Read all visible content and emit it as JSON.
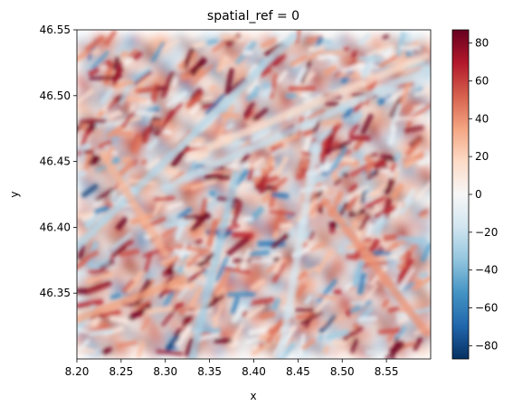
{
  "chart_data": {
    "type": "heatmap",
    "title": "spatial_ref = 0",
    "xlabel": "x",
    "ylabel": "y",
    "xlim": [
      8.2,
      8.6
    ],
    "ylim": [
      46.3,
      46.55
    ],
    "x_ticks": [
      "8.20",
      "8.25",
      "8.30",
      "8.35",
      "8.40",
      "8.45",
      "8.50",
      "8.55"
    ],
    "x_tick_values": [
      8.2,
      8.25,
      8.3,
      8.35,
      8.4,
      8.45,
      8.5,
      8.55
    ],
    "y_ticks": [
      "46.35",
      "46.40",
      "46.45",
      "46.50",
      "46.55"
    ],
    "y_tick_values": [
      46.35,
      46.4,
      46.45,
      46.5,
      46.55
    ],
    "data_extent": {
      "x": [
        8.2,
        8.595
      ],
      "y": [
        46.305,
        46.545
      ]
    },
    "colorbar": {
      "colormap": "RdBu_r",
      "range": [
        -87,
        87
      ],
      "ticks": [
        "−80",
        "−60",
        "−40",
        "−20",
        "0",
        "20",
        "40",
        "60",
        "80"
      ],
      "tick_values": [
        -80,
        -60,
        -40,
        -20,
        0,
        20,
        40,
        60,
        80
      ]
    },
    "colormap_stops": [
      "#053061",
      "#2166ac",
      "#4393c3",
      "#92c5de",
      "#d1e5f0",
      "#f7f7f7",
      "#fddbc7",
      "#f4a582",
      "#d6604d",
      "#b2182b",
      "#67001f"
    ],
    "features": [
      {
        "x1": 8.2,
        "y1": 46.385,
        "x2": 8.445,
        "y2": 46.545,
        "value": -25
      },
      {
        "x1": 8.3,
        "y1": 46.43,
        "x2": 8.595,
        "y2": 46.52,
        "value": -20
      },
      {
        "x1": 8.33,
        "y1": 46.455,
        "x2": 8.595,
        "y2": 46.53,
        "value": 15
      },
      {
        "x1": 8.43,
        "y1": 46.3,
        "x2": 8.47,
        "y2": 46.46,
        "value": -15
      },
      {
        "x1": 8.2,
        "y1": 46.33,
        "x2": 8.32,
        "y2": 46.36,
        "value": 35
      },
      {
        "x1": 8.48,
        "y1": 46.42,
        "x2": 8.595,
        "y2": 46.32,
        "value": 40
      },
      {
        "x1": 8.33,
        "y1": 46.3,
        "x2": 8.38,
        "y2": 46.44,
        "value": -30
      },
      {
        "x1": 8.23,
        "y1": 46.455,
        "x2": 8.3,
        "y2": 46.38,
        "value": 30
      }
    ]
  }
}
